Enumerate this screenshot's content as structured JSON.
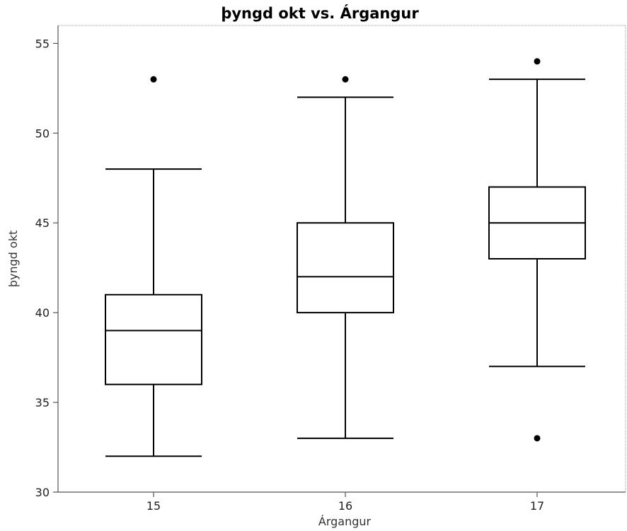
{
  "chart_data": {
    "type": "boxplot",
    "title": "þyngd okt vs. Árgangur",
    "xlabel": "Árgangur",
    "ylabel": "þyngd okt",
    "ylim": [
      30,
      56
    ],
    "yticks": [
      30,
      35,
      40,
      45,
      50,
      55
    ],
    "categories": [
      "15",
      "16",
      "17"
    ],
    "boxes": [
      {
        "category": "15",
        "whisker_low": 32,
        "q1": 36,
        "median": 39,
        "q3": 41,
        "whisker_high": 48,
        "outliers": [
          53
        ]
      },
      {
        "category": "16",
        "whisker_low": 33,
        "q1": 40,
        "median": 42,
        "q3": 45,
        "whisker_high": 52,
        "outliers": [
          53
        ]
      },
      {
        "category": "17",
        "whisker_low": 37,
        "q1": 43,
        "median": 45,
        "q3": 47,
        "whisker_high": 53,
        "outliers": [
          54,
          33
        ]
      }
    ],
    "grid": false
  }
}
